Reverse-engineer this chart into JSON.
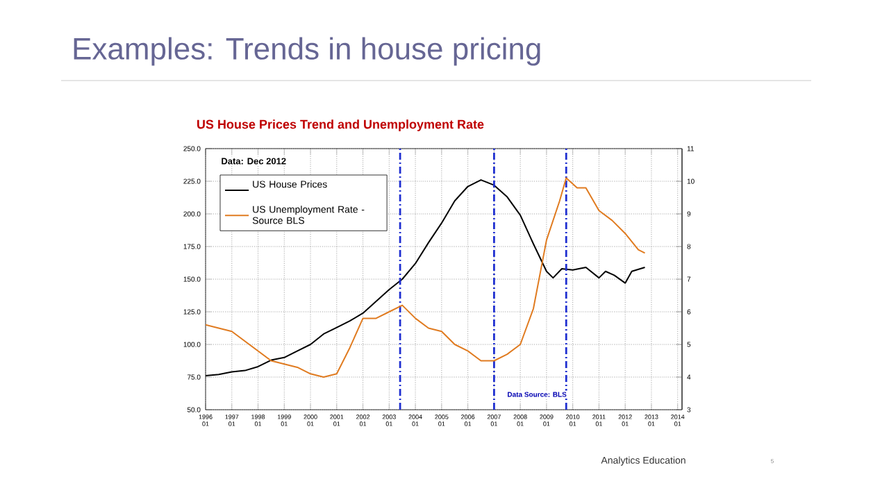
{
  "chart_data": {
    "type": "line",
    "title": "Examples: Trends in house pricing",
    "subtitle": "US House Prices Trend and Unemployment Rate",
    "xlim": [
      "1996-01",
      "2014-03"
    ],
    "xticks": [
      {
        "value": "1996-01",
        "label": "1996 01"
      },
      {
        "value": "1997-01",
        "label": "1997 01"
      },
      {
        "value": "1998-01",
        "label": "1998 01"
      },
      {
        "value": "1999-01",
        "label": "1999 01"
      },
      {
        "value": "2000-01",
        "label": "2000 01"
      },
      {
        "value": "2001-01",
        "label": "2001 01"
      },
      {
        "value": "2002-01",
        "label": "2002 01"
      },
      {
        "value": "2003-01",
        "label": "2003 01"
      },
      {
        "value": "2004-01",
        "label": "2004 01"
      },
      {
        "value": "2005-01",
        "label": "2005 01"
      },
      {
        "value": "2006-01",
        "label": "2006 01"
      },
      {
        "value": "2007-01",
        "label": "2007 01"
      },
      {
        "value": "2008-01",
        "label": "2008 01"
      },
      {
        "value": "2009-01",
        "label": "2009 01"
      },
      {
        "value": "2010-01",
        "label": "2010 01"
      },
      {
        "value": "2011-01",
        "label": "2011 01"
      },
      {
        "value": "2012-01",
        "label": "2012 01"
      },
      {
        "value": "2013-01",
        "label": "2013 01"
      },
      {
        "value": "2014-01",
        "label": "2014 01"
      }
    ],
    "ylim": [
      50,
      250
    ],
    "yticks": [
      {
        "value": 50,
        "label": "50.0"
      },
      {
        "value": 75,
        "label": "75.0"
      },
      {
        "value": 100,
        "label": "100.0"
      },
      {
        "value": 125,
        "label": "125.0"
      },
      {
        "value": 150,
        "label": "150.0"
      },
      {
        "value": 175,
        "label": "175.0"
      },
      {
        "value": 200,
        "label": "200.0"
      },
      {
        "value": 225,
        "label": "225.0"
      },
      {
        "value": 250,
        "label": "250.0"
      }
    ],
    "y2lim": [
      3,
      11
    ],
    "y2ticks": [
      3,
      4,
      5,
      6,
      7,
      8,
      9,
      10,
      11
    ],
    "grid": true,
    "legend": "top left",
    "marker": "none",
    "line_style": "solid",
    "series": [
      {
        "name": "US House Prices",
        "color": "#000000",
        "x": [
          "1996-01",
          "1996-07",
          "1997-01",
          "1997-07",
          "1998-01",
          "1998-07",
          "1999-01",
          "1999-07",
          "2000-01",
          "2000-07",
          "2001-01",
          "2001-07",
          "2002-01",
          "2002-07",
          "2003-01",
          "2003-07",
          "2004-01",
          "2004-07",
          "2005-01",
          "2005-07",
          "2006-01",
          "2006-07",
          "2007-01",
          "2007-07",
          "2008-01",
          "2008-07",
          "2009-01",
          "2009-04",
          "2009-08",
          "2010-01",
          "2010-07",
          "2011-01",
          "2011-04",
          "2011-08",
          "2012-01",
          "2012-04",
          "2012-10"
        ],
        "values": [
          76,
          77,
          79,
          80,
          83,
          88,
          90,
          95,
          100,
          108,
          113,
          118,
          124,
          133,
          142,
          150,
          162,
          178,
          193,
          210,
          221,
          226,
          222,
          213,
          199,
          177,
          156,
          151,
          158,
          157,
          159,
          151,
          156,
          153,
          147,
          156,
          159
        ]
      },
      {
        "name": "US Unemployment Rate - Source BLS",
        "color": "#e07b20",
        "axis": "y2",
        "x": [
          "1996-01",
          "1996-07",
          "1997-01",
          "1997-07",
          "1998-01",
          "1998-07",
          "1999-01",
          "1999-07",
          "2000-01",
          "2000-07",
          "2001-01",
          "2001-07",
          "2002-01",
          "2002-07",
          "2003-01",
          "2003-07",
          "2004-01",
          "2004-07",
          "2005-01",
          "2005-07",
          "2006-01",
          "2006-07",
          "2007-01",
          "2007-07",
          "2008-01",
          "2008-07",
          "2009-01",
          "2009-07",
          "2009-10",
          "2010-03",
          "2010-07",
          "2011-01",
          "2011-07",
          "2012-01",
          "2012-07",
          "2012-10"
        ],
        "values": [
          5.6,
          5.5,
          5.4,
          5.1,
          4.8,
          4.5,
          4.4,
          4.3,
          4.1,
          4.0,
          4.1,
          4.9,
          5.8,
          5.8,
          6.0,
          6.2,
          5.8,
          5.5,
          5.4,
          5.0,
          4.8,
          4.5,
          4.5,
          4.7,
          5.0,
          6.1,
          8.2,
          9.4,
          10.1,
          9.8,
          9.8,
          9.1,
          8.8,
          8.4,
          7.9,
          7.8
        ]
      }
    ],
    "ref_lines": [
      {
        "axis": "x",
        "value": "2003-06",
        "color": "#1f2fd0",
        "line_style": "dashed"
      },
      {
        "axis": "x",
        "value": "2007-01",
        "color": "#1f2fd0",
        "line_style": "dashed"
      },
      {
        "axis": "x",
        "value": "2009-10",
        "color": "#1f2fd0",
        "line_style": "dashed"
      }
    ],
    "annotations": [
      "Data:  Dec 2012",
      "Data Source: BLS",
      "Analytics Education",
      "5"
    ]
  }
}
